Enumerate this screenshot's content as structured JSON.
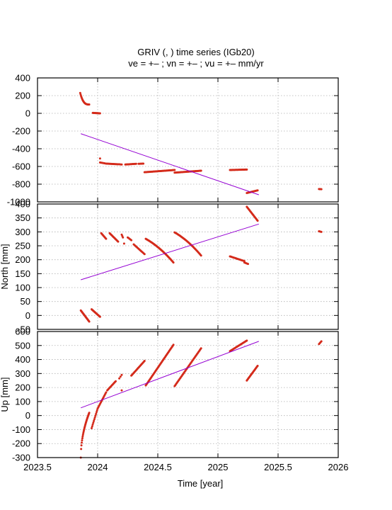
{
  "title": "GRIV (, ) time series (IGb20)",
  "subtitle": "ve =  +– ; vn =  +– ; vu =  +–  mm/yr",
  "colors": {
    "points": "#d42a1a",
    "trend": "#9400d3",
    "grid": "#b0b0b0",
    "frame": "#000000"
  },
  "chart_data": [
    {
      "type": "scatter",
      "panel": "east",
      "ylabel": "",
      "ylim": [
        -1000,
        400
      ],
      "yticks": [
        -1000,
        -800,
        -600,
        -400,
        -200,
        0,
        200,
        400
      ],
      "xlim": [
        2023.5,
        2026
      ],
      "grid": true,
      "segments": [
        {
          "x0": 2023.855,
          "x1": 2023.93,
          "y0": 230,
          "y1": 100,
          "shape": "decay",
          "n": 22
        },
        {
          "x0": 2023.96,
          "x1": 2024.02,
          "y0": 5,
          "y1": 0,
          "shape": "linear",
          "n": 14
        },
        {
          "x0": 2024.02,
          "x1": 2024.06,
          "y0": -555,
          "y1": -565,
          "shape": "linear",
          "n": 6
        },
        {
          "x0": 2024.07,
          "x1": 2024.17,
          "y0": -568,
          "y1": -575,
          "shape": "linear",
          "n": 16
        },
        {
          "x0": 2024.18,
          "x1": 2024.2,
          "y0": -575,
          "y1": -578,
          "shape": "linear",
          "n": 3
        },
        {
          "x0": 2024.23,
          "x1": 2024.32,
          "y0": -578,
          "y1": -570,
          "shape": "linear",
          "n": 14
        },
        {
          "x0": 2024.34,
          "x1": 2024.38,
          "y0": -570,
          "y1": -568,
          "shape": "linear",
          "n": 6
        },
        {
          "x0": 2024.39,
          "x1": 2024.64,
          "y0": -665,
          "y1": -640,
          "shape": "linear",
          "n": 40
        },
        {
          "x0": 2024.64,
          "x1": 2024.86,
          "y0": -670,
          "y1": -648,
          "shape": "linear",
          "n": 36
        },
        {
          "x0": 2025.1,
          "x1": 2025.24,
          "y0": -640,
          "y1": -635,
          "shape": "linear",
          "n": 22
        },
        {
          "x0": 2025.24,
          "x1": 2025.33,
          "y0": -900,
          "y1": -870,
          "shape": "linear",
          "n": 16
        },
        {
          "x0": 2025.84,
          "x1": 2025.86,
          "y0": -855,
          "y1": -857,
          "shape": "linear",
          "n": 4
        }
      ],
      "singles": [
        {
          "x": 2024.02,
          "y": -510
        }
      ],
      "trend": {
        "x": [
          2023.86,
          2025.34
        ],
        "y": [
          -230,
          -920
        ]
      }
    },
    {
      "type": "scatter",
      "panel": "north",
      "ylabel": "North [mm]",
      "ylim": [
        -50,
        400
      ],
      "yticks": [
        -50,
        0,
        50,
        100,
        150,
        200,
        250,
        300,
        350,
        400
      ],
      "xlim": [
        2023.5,
        2026
      ],
      "grid": true,
      "segments": [
        {
          "x0": 2023.86,
          "x1": 2023.93,
          "y0": 18,
          "y1": -22,
          "shape": "linear",
          "n": 20
        },
        {
          "x0": 2023.95,
          "x1": 2024.02,
          "y0": 22,
          "y1": -5,
          "shape": "linear",
          "n": 16
        },
        {
          "x0": 2024.03,
          "x1": 2024.07,
          "y0": 295,
          "y1": 275,
          "shape": "linear",
          "n": 8
        },
        {
          "x0": 2024.1,
          "x1": 2024.17,
          "y0": 295,
          "y1": 265,
          "shape": "linear",
          "n": 14
        },
        {
          "x0": 2024.2,
          "x1": 2024.21,
          "y0": 290,
          "y1": 280,
          "shape": "linear",
          "n": 3
        },
        {
          "x0": 2024.25,
          "x1": 2024.28,
          "y0": 280,
          "y1": 270,
          "shape": "linear",
          "n": 5
        },
        {
          "x0": 2024.3,
          "x1": 2024.39,
          "y0": 255,
          "y1": 220,
          "shape": "linear",
          "n": 14
        },
        {
          "x0": 2024.4,
          "x1": 2024.63,
          "y0": 275,
          "y1": 190,
          "shape": "concave",
          "n": 42
        },
        {
          "x0": 2024.64,
          "x1": 2024.86,
          "y0": 298,
          "y1": 215,
          "shape": "concave",
          "n": 38
        },
        {
          "x0": 2025.1,
          "x1": 2025.22,
          "y0": 212,
          "y1": 195,
          "shape": "linear",
          "n": 20
        },
        {
          "x0": 2025.22,
          "x1": 2025.25,
          "y0": 190,
          "y1": 185,
          "shape": "linear",
          "n": 5
        },
        {
          "x0": 2025.24,
          "x1": 2025.33,
          "y0": 390,
          "y1": 340,
          "shape": "linear",
          "n": 18
        },
        {
          "x0": 2025.84,
          "x1": 2025.86,
          "y0": 302,
          "y1": 300,
          "shape": "linear",
          "n": 4
        }
      ],
      "singles": [
        {
          "x": 2024.22,
          "y": 258
        }
      ],
      "trend": {
        "x": [
          2023.86,
          2025.34
        ],
        "y": [
          128,
          328
        ]
      }
    },
    {
      "type": "scatter",
      "panel": "up",
      "ylabel": "Up [mm]",
      "ylim": [
        -300,
        600
      ],
      "yticks": [
        -300,
        -200,
        -100,
        0,
        100,
        200,
        300,
        400,
        500,
        600
      ],
      "xlim": [
        2023.5,
        2026
      ],
      "xticks": [
        2023.5,
        2024,
        2024.5,
        2025,
        2025.5,
        2026
      ],
      "xtick_labels": [
        "2023.5",
        "2024",
        "2024.5",
        "2025",
        "2025.5",
        "2026"
      ],
      "xlabel": "Time [year]",
      "grid": true,
      "segments": [
        {
          "x0": 2023.86,
          "x1": 2023.93,
          "y0": -300,
          "y1": 20,
          "shape": "sqrt",
          "n": 28
        },
        {
          "x0": 2023.95,
          "x1": 2024.0,
          "y0": -90,
          "y1": 50,
          "shape": "linear",
          "n": 12
        },
        {
          "x0": 2024.0,
          "x1": 2024.07,
          "y0": 50,
          "y1": 165,
          "shape": "linear",
          "n": 14
        },
        {
          "x0": 2024.08,
          "x1": 2024.15,
          "y0": 180,
          "y1": 245,
          "shape": "linear",
          "n": 12
        },
        {
          "x0": 2024.18,
          "x1": 2024.2,
          "y0": 265,
          "y1": 290,
          "shape": "linear",
          "n": 3
        },
        {
          "x0": 2024.28,
          "x1": 2024.39,
          "y0": 285,
          "y1": 390,
          "shape": "linear",
          "n": 18
        },
        {
          "x0": 2024.4,
          "x1": 2024.63,
          "y0": 215,
          "y1": 505,
          "shape": "linear",
          "n": 42
        },
        {
          "x0": 2024.64,
          "x1": 2024.86,
          "y0": 210,
          "y1": 480,
          "shape": "linear",
          "n": 38
        },
        {
          "x0": 2025.1,
          "x1": 2025.24,
          "y0": 460,
          "y1": 535,
          "shape": "linear",
          "n": 22
        },
        {
          "x0": 2025.24,
          "x1": 2025.33,
          "y0": 250,
          "y1": 355,
          "shape": "linear",
          "n": 18
        },
        {
          "x0": 2025.84,
          "x1": 2025.86,
          "y0": 510,
          "y1": 530,
          "shape": "linear",
          "n": 4
        }
      ],
      "singles": [
        {
          "x": 2024.2,
          "y": 180
        }
      ],
      "trend": {
        "x": [
          2023.86,
          2025.34
        ],
        "y": [
          55,
          530
        ]
      }
    }
  ]
}
